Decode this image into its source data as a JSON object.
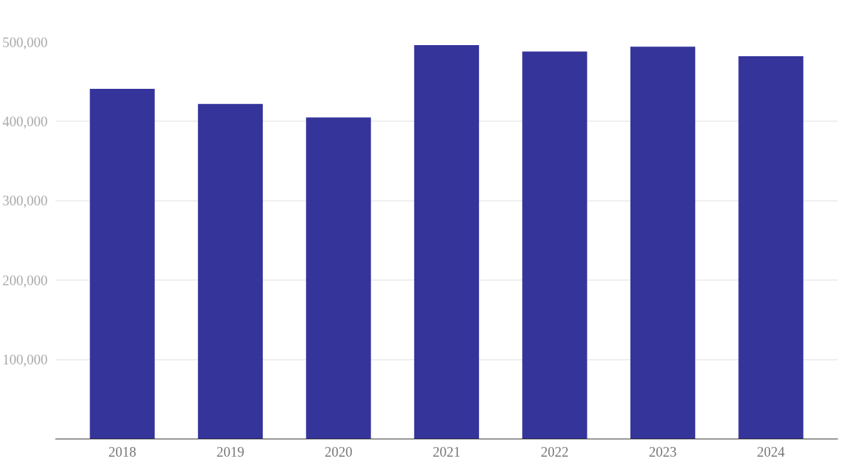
{
  "chart_data": {
    "type": "bar",
    "categories": [
      "2018",
      "2019",
      "2020",
      "2021",
      "2022",
      "2023",
      "2024"
    ],
    "values": [
      441000,
      422000,
      405000,
      496000,
      488000,
      494000,
      482000
    ],
    "color": "#35349a",
    "ylim": [
      0,
      500000
    ],
    "yticks": [
      {
        "value": 100000,
        "label": "100,000"
      },
      {
        "value": 200000,
        "label": "200,000"
      },
      {
        "value": 300000,
        "label": "300,000"
      },
      {
        "value": 400000,
        "label": "400,000"
      },
      {
        "value": 500000,
        "label": "500,000"
      }
    ],
    "grid": "y"
  }
}
